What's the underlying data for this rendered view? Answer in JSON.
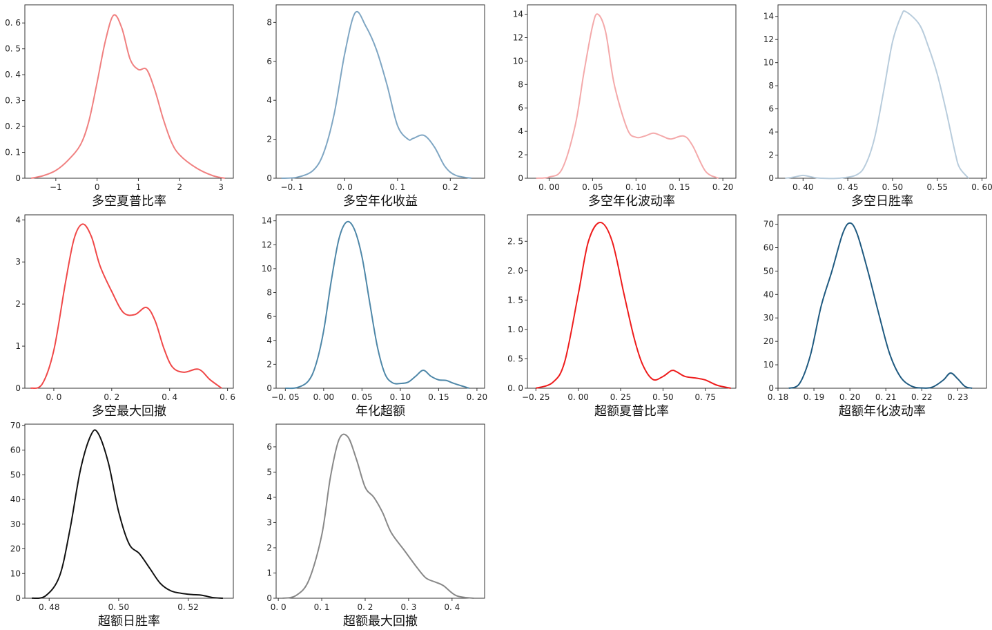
{
  "chart_data": [
    {
      "type": "line",
      "xlabel": "多空夏普比率",
      "color": "#f08080",
      "xlim": [
        -1.75,
        3.3
      ],
      "ylim": [
        0,
        0.67
      ],
      "xticks": [
        -1,
        0,
        1,
        2,
        3
      ],
      "xtick_labels": [
        "−1",
        "0",
        "1",
        "2",
        "3"
      ],
      "yticks": [
        0,
        0.1,
        0.2,
        0.3,
        0.4,
        0.5,
        0.6
      ],
      "ytick_labels": [
        "0",
        "0. 1",
        "0. 2",
        "0. 3",
        "0. 4",
        "0. 5",
        "0. 6"
      ],
      "series": [
        {
          "x": [
            -1.6,
            -1.3,
            -1.0,
            -0.7,
            -0.4,
            -0.2,
            0.0,
            0.2,
            0.4,
            0.6,
            0.8,
            1.0,
            1.2,
            1.4,
            1.6,
            1.8,
            2.0,
            2.4,
            2.8,
            3.1
          ],
          "y": [
            0.0,
            0.01,
            0.03,
            0.07,
            0.13,
            0.22,
            0.37,
            0.53,
            0.63,
            0.58,
            0.46,
            0.42,
            0.42,
            0.34,
            0.23,
            0.14,
            0.09,
            0.04,
            0.01,
            0.0
          ]
        }
      ]
    },
    {
      "type": "line",
      "xlabel": "多空年化收益",
      "color": "#7fa6c3",
      "xlim": [
        -0.13,
        0.265
      ],
      "ylim": [
        0,
        8.9
      ],
      "xticks": [
        -0.1,
        0.0,
        0.1,
        0.2
      ],
      "xtick_labels": [
        "−0. 1",
        "0. 0",
        "0. 1",
        "0. 2"
      ],
      "yticks": [
        0,
        2,
        4,
        6,
        8
      ],
      "ytick_labels": [
        "0",
        "2",
        "4",
        "6",
        "8"
      ],
      "series": [
        {
          "x": [
            -0.12,
            -0.09,
            -0.06,
            -0.04,
            -0.02,
            0.0,
            0.02,
            0.04,
            0.06,
            0.08,
            0.1,
            0.12,
            0.13,
            0.15,
            0.17,
            0.19,
            0.21,
            0.24
          ],
          "y": [
            0.0,
            0.05,
            0.4,
            1.3,
            3.3,
            6.4,
            8.5,
            7.8,
            6.6,
            4.8,
            2.7,
            2.0,
            2.05,
            2.2,
            1.6,
            0.6,
            0.15,
            0.0
          ]
        }
      ]
    },
    {
      "type": "line",
      "xlabel": "多空年化波动率",
      "color": "#f4a9aa",
      "xlim": [
        -0.025,
        0.215
      ],
      "ylim": [
        0,
        14.8
      ],
      "xticks": [
        0.0,
        0.05,
        0.1,
        0.15,
        0.2
      ],
      "xtick_labels": [
        "0. 00",
        "0. 05",
        "0. 10",
        "0. 15",
        "0. 20"
      ],
      "yticks": [
        0,
        2,
        4,
        6,
        8,
        10,
        12,
        14
      ],
      "ytick_labels": [
        "0",
        "2",
        "4",
        "6",
        "8",
        "10",
        "12",
        "14"
      ],
      "series": [
        {
          "x": [
            -0.015,
            0.0,
            0.015,
            0.03,
            0.04,
            0.05,
            0.056,
            0.065,
            0.075,
            0.09,
            0.1,
            0.11,
            0.12,
            0.13,
            0.14,
            0.155,
            0.165,
            0.18,
            0.195
          ],
          "y": [
            0.0,
            0.1,
            0.8,
            4.5,
            9.0,
            13.0,
            14.0,
            12.5,
            8.0,
            4.2,
            3.5,
            3.6,
            3.85,
            3.6,
            3.35,
            3.6,
            2.8,
            0.6,
            0.0
          ]
        }
      ]
    },
    {
      "type": "line",
      "xlabel": "多空日胜率",
      "color": "#b8ccdc",
      "xlim": [
        0.372,
        0.605
      ],
      "ylim": [
        0,
        15.0
      ],
      "xticks": [
        0.4,
        0.45,
        0.5,
        0.55,
        0.6
      ],
      "xtick_labels": [
        "0. 40",
        "0. 45",
        "0. 50",
        "0. 55",
        "0. 60"
      ],
      "yticks": [
        0,
        2,
        4,
        6,
        8,
        10,
        12,
        14
      ],
      "ytick_labels": [
        "0",
        "2",
        "4",
        "6",
        "8",
        "10",
        "12",
        "14"
      ],
      "series": [
        {
          "x": [
            0.38,
            0.39,
            0.4,
            0.41,
            0.42,
            0.44,
            0.46,
            0.47,
            0.48,
            0.49,
            0.5,
            0.51,
            0.515,
            0.53,
            0.54,
            0.55,
            0.56,
            0.57,
            0.575,
            0.585
          ],
          "y": [
            0.0,
            0.1,
            0.25,
            0.1,
            0.0,
            0.0,
            0.3,
            1.2,
            3.5,
            7.5,
            11.8,
            14.1,
            14.4,
            13.3,
            11.4,
            9.0,
            5.8,
            2.2,
            0.9,
            0.0
          ]
        }
      ]
    },
    {
      "type": "line",
      "xlabel": "多空最大回撤",
      "color": "#f04848",
      "xlim": [
        -0.1,
        0.62
      ],
      "ylim": [
        0,
        4.12
      ],
      "xticks": [
        0.0,
        0.2,
        0.4,
        0.6
      ],
      "xtick_labels": [
        "0. 0",
        "0. 2",
        "0. 4",
        "0. 6"
      ],
      "yticks": [
        0,
        1,
        2,
        3,
        4
      ],
      "ytick_labels": [
        "0",
        "1",
        "2",
        "3",
        "4"
      ],
      "series": [
        {
          "x": [
            -0.08,
            -0.04,
            0.0,
            0.04,
            0.07,
            0.1,
            0.13,
            0.16,
            0.2,
            0.24,
            0.28,
            0.32,
            0.35,
            0.38,
            0.41,
            0.45,
            0.5,
            0.54,
            0.58
          ],
          "y": [
            0.0,
            0.1,
            0.9,
            2.5,
            3.55,
            3.9,
            3.6,
            2.9,
            2.3,
            1.8,
            1.75,
            1.92,
            1.6,
            0.95,
            0.5,
            0.38,
            0.45,
            0.2,
            0.0
          ]
        }
      ]
    },
    {
      "type": "line",
      "xlabel": "年化超额",
      "color": "#4e87a8",
      "xlim": [
        -0.062,
        0.21
      ],
      "ylim": [
        0,
        14.5
      ],
      "xticks": [
        -0.05,
        0.0,
        0.05,
        0.1,
        0.15,
        0.2
      ],
      "xtick_labels": [
        "−0. 05",
        "0. 00",
        "0. 05",
        "0. 10",
        "0. 15",
        "0. 20"
      ],
      "yticks": [
        0,
        2,
        4,
        6,
        8,
        10,
        12,
        14
      ],
      "ytick_labels": [
        "0",
        "2",
        "4",
        "6",
        "8",
        "10",
        "12",
        "14"
      ],
      "series": [
        {
          "x": [
            -0.05,
            -0.035,
            -0.02,
            -0.01,
            0.0,
            0.01,
            0.02,
            0.03,
            0.04,
            0.05,
            0.06,
            0.07,
            0.08,
            0.09,
            0.1,
            0.11,
            0.12,
            0.13,
            0.14,
            0.15,
            0.16,
            0.17,
            0.19
          ],
          "y": [
            0.0,
            0.05,
            0.6,
            2.0,
            4.8,
            9.0,
            12.5,
            13.9,
            13.3,
            11.0,
            7.2,
            3.5,
            1.2,
            0.45,
            0.4,
            0.5,
            1.0,
            1.5,
            1.0,
            0.7,
            0.65,
            0.4,
            0.0
          ]
        }
      ]
    },
    {
      "type": "line",
      "xlabel": "超额夏普比率",
      "color": "#ee1c1c",
      "xlim": [
        -0.3,
        0.93
      ],
      "ylim": [
        0,
        2.95
      ],
      "xticks": [
        -0.25,
        0.0,
        0.25,
        0.5,
        0.75
      ],
      "xtick_labels": [
        "−0. 25",
        "0. 00",
        "0. 25",
        "0. 50",
        "0. 75"
      ],
      "yticks": [
        0,
        0.5,
        1.0,
        1.5,
        2.0,
        2.5
      ],
      "ytick_labels": [
        "0. 0",
        "0. 5",
        "1. 0",
        "1. 5",
        "2. 0",
        "2. 5"
      ],
      "series": [
        {
          "x": [
            -0.25,
            -0.15,
            -0.08,
            0.0,
            0.06,
            0.13,
            0.2,
            0.27,
            0.33,
            0.38,
            0.44,
            0.5,
            0.55,
            0.58,
            0.63,
            0.7,
            0.75,
            0.82,
            0.9
          ],
          "y": [
            0.0,
            0.1,
            0.45,
            1.6,
            2.5,
            2.82,
            2.5,
            1.6,
            0.85,
            0.4,
            0.15,
            0.2,
            0.3,
            0.28,
            0.2,
            0.17,
            0.14,
            0.05,
            0.0
          ]
        }
      ]
    },
    {
      "type": "line",
      "xlabel": "超额年化波动率",
      "color": "#1f5a80",
      "xlim": [
        0.18,
        0.238
      ],
      "ylim": [
        0,
        74
      ],
      "xticks": [
        0.18,
        0.19,
        0.2,
        0.21,
        0.22,
        0.23
      ],
      "xtick_labels": [
        "0. 18",
        "0. 19",
        "0. 20",
        "0. 21",
        "0. 22",
        "0. 23"
      ],
      "yticks": [
        0,
        10,
        20,
        30,
        40,
        50,
        60,
        70
      ],
      "ytick_labels": [
        "0",
        "10",
        "20",
        "30",
        "40",
        "50",
        "60",
        "70"
      ],
      "series": [
        {
          "x": [
            0.183,
            0.186,
            0.189,
            0.192,
            0.195,
            0.198,
            0.2,
            0.202,
            0.205,
            0.208,
            0.211,
            0.214,
            0.217,
            0.22,
            0.223,
            0.226,
            0.228,
            0.23,
            0.232,
            0.234
          ],
          "y": [
            0.0,
            2.0,
            14.0,
            35.0,
            50.0,
            66.0,
            70.5,
            66.0,
            50.0,
            32.0,
            15.0,
            5.0,
            1.0,
            0.1,
            0.5,
            3.5,
            6.5,
            4.0,
            0.8,
            0.0
          ]
        }
      ]
    },
    {
      "type": "line",
      "xlabel": "超额日胜率",
      "color": "#111111",
      "xlim": [
        0.473,
        0.533
      ],
      "ylim": [
        0,
        70.5
      ],
      "xticks": [
        0.48,
        0.5,
        0.52
      ],
      "xtick_labels": [
        "0. 48",
        "0. 50",
        "0. 52"
      ],
      "yticks": [
        0,
        10,
        20,
        30,
        40,
        50,
        60,
        70
      ],
      "ytick_labels": [
        "0",
        "10",
        "20",
        "30",
        "40",
        "50",
        "60",
        "70"
      ],
      "series": [
        {
          "x": [
            0.475,
            0.479,
            0.483,
            0.486,
            0.489,
            0.492,
            0.494,
            0.497,
            0.5,
            0.503,
            0.506,
            0.509,
            0.512,
            0.515,
            0.518,
            0.521,
            0.524,
            0.527,
            0.53
          ],
          "y": [
            0.0,
            1.0,
            9.0,
            28.0,
            52.0,
            66.0,
            67.0,
            55.0,
            35.0,
            22.0,
            18.0,
            12.0,
            6.0,
            3.0,
            2.0,
            1.5,
            1.2,
            0.3,
            0.0
          ]
        }
      ]
    },
    {
      "type": "line",
      "xlabel": "超额最大回撤",
      "color": "#888888",
      "xlim": [
        -0.005,
        0.475
      ],
      "ylim": [
        0,
        6.9
      ],
      "xticks": [
        0.0,
        0.1,
        0.2,
        0.3,
        0.4
      ],
      "xtick_labels": [
        "0. 0",
        "0. 1",
        "0. 2",
        "0. 3",
        "0. 4"
      ],
      "yticks": [
        0,
        1,
        2,
        3,
        4,
        5,
        6
      ],
      "ytick_labels": [
        "0",
        "1",
        "2",
        "3",
        "4",
        "5",
        "6"
      ],
      "series": [
        {
          "x": [
            0.01,
            0.04,
            0.07,
            0.1,
            0.12,
            0.14,
            0.16,
            0.18,
            0.2,
            0.22,
            0.24,
            0.26,
            0.29,
            0.32,
            0.34,
            0.36,
            0.38,
            0.41,
            0.45
          ],
          "y": [
            0.0,
            0.1,
            0.7,
            2.5,
            4.8,
            6.3,
            6.4,
            5.5,
            4.4,
            4.0,
            3.4,
            2.6,
            1.9,
            1.2,
            0.8,
            0.65,
            0.5,
            0.1,
            0.0
          ]
        }
      ]
    }
  ]
}
